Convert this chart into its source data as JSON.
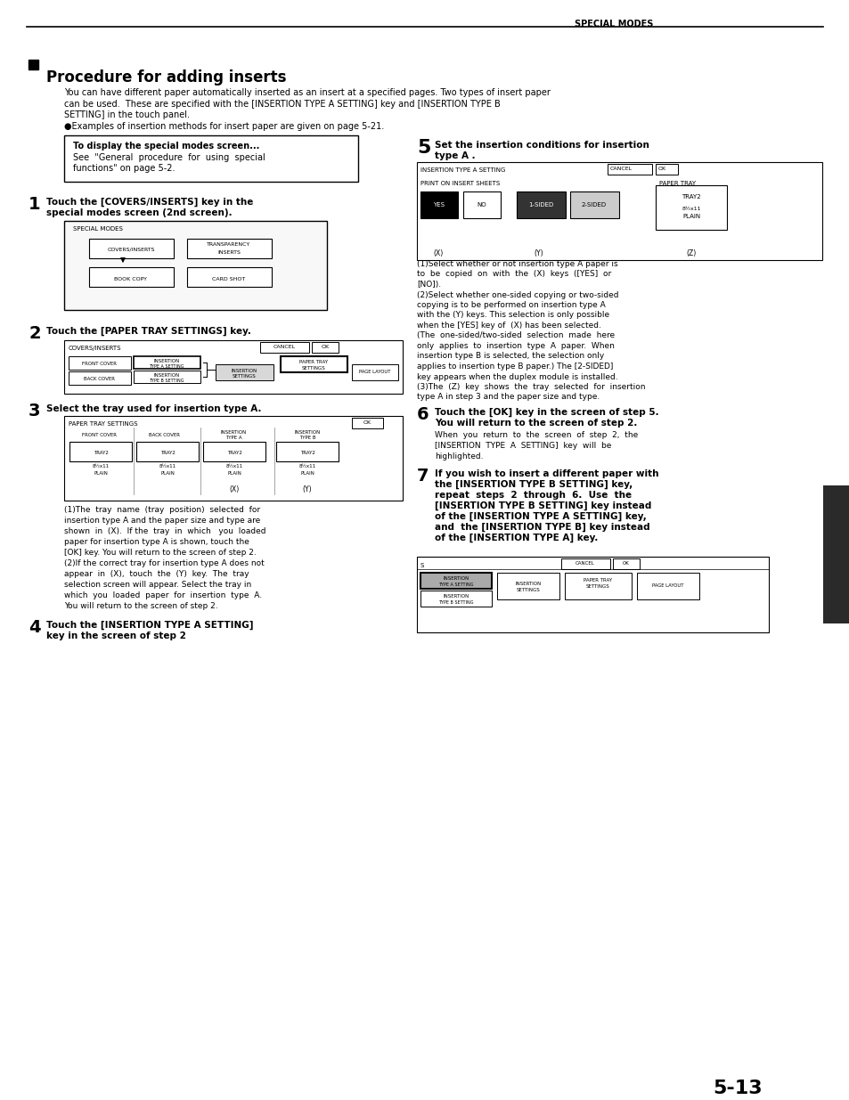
{
  "bg_color": "#ffffff",
  "header_text": "SPECIAL MODES",
  "page_number": "5-13",
  "section_title": "Procedure for adding inserts",
  "intro_lines": [
    "You can have different paper automatically inserted as an insert at a specified pages. Two types of insert paper",
    "can be used.  These are specified with the [INSERTION TYPE A SETTING] key and [INSERTION TYPE B",
    "SETTING] in the touch panel."
  ],
  "bullet_line": "●Examples of insertion methods for insert paper are given on page 5-21.",
  "note_bold": "To display the special modes screen...",
  "note_body1": "See  \"General  procedure  for  using  special",
  "note_body2": "functions\" on page 5-2.",
  "step1_bold1": "Touch the [COVERS/INSERTS] key in the",
  "step1_bold2": "special modes screen (2nd screen).",
  "step2_bold": "Touch the [PAPER TRAY SETTINGS] key.",
  "step3_bold": "Select the tray used for insertion type A.",
  "step4_bold1": "Touch the [INSERTION TYPE A SETTING]",
  "step4_bold2": "key in the screen of step 2",
  "step5_bold1": "Set the insertion conditions for insertion",
  "step5_bold2": "type A .",
  "step6_bold1": "Touch the [OK] key in the screen of step 5.",
  "step6_bold2": "You will return to the screen of step 2.",
  "step6_body1": "When  you  return  to  the  screen  of  step  2,  the",
  "step6_body2": "[INSERTION  TYPE  A  SETTING]  key  will  be",
  "step6_body3": "highlighted.",
  "step7_bold1": "If you wish to insert a different paper with",
  "step7_bold2": "the [INSERTION TYPE B SETTING] key,",
  "step7_bold3": "repeat  steps  2  through  6.  Use  the",
  "step7_bold4": "[INSERTION TYPE B SETTING] key instead",
  "step7_bold5": "of the [INSERTION TYPE A SETTING] key,",
  "step7_bold6": "and  the [INSERTION TYPE B] key instead",
  "step7_bold7": "of the [INSERTION TYPE A] key.",
  "step3_n1a": "(1)The  tray  name  (tray  position)  selected  for",
  "step3_n1b": "insertion type A and the paper size and type are",
  "step3_n1c": "shown  in  (X).  If the  tray  in  which   you  loaded",
  "step3_n1d": "paper for insertion type A is shown, touch the",
  "step3_n1e": "[OK] key. You will return to the screen of step 2.",
  "step3_n2a": "(2)If the correct tray for insertion type A does not",
  "step3_n2b": "appear  in  (X),  touch  the  (Y)  key.  The  tray",
  "step3_n2c": "selection screen will appear. Select the tray in",
  "step3_n2d": "which  you  loaded  paper  for  insertion  type  A.",
  "step3_n2e": "You will return to the screen of step 2.",
  "step5_n1a": "(1)Select whether or not insertion type A paper is",
  "step5_n1b": "to  be  copied  on  with  the  (X)  keys  ([YES]  or",
  "step5_n1c": "[NO]).",
  "step5_n2a": "(2)Select whether one-sided copying or two-sided",
  "step5_n2b": "copying is to be performed on insertion type A",
  "step5_n2c": "with the (Y) keys. This selection is only possible",
  "step5_n2d": "when the [YES] key of  (X) has been selected.",
  "step5_n2e": "(The  one-sided/two-sided  selection  made  here",
  "step5_n2f": "only  applies  to  insertion  type  A  paper.  When",
  "step5_n2g": "insertion type B is selected, the selection only",
  "step5_n2h": "applies to insertion type B paper.) The [2-SIDED]",
  "step5_n2i": "key appears when the duplex module is installed.",
  "step5_n3a": "(3)The  (Z)  key  shows  the  tray  selected  for  insertion",
  "step5_n3b": "type A in step 3 and the paper size and type."
}
